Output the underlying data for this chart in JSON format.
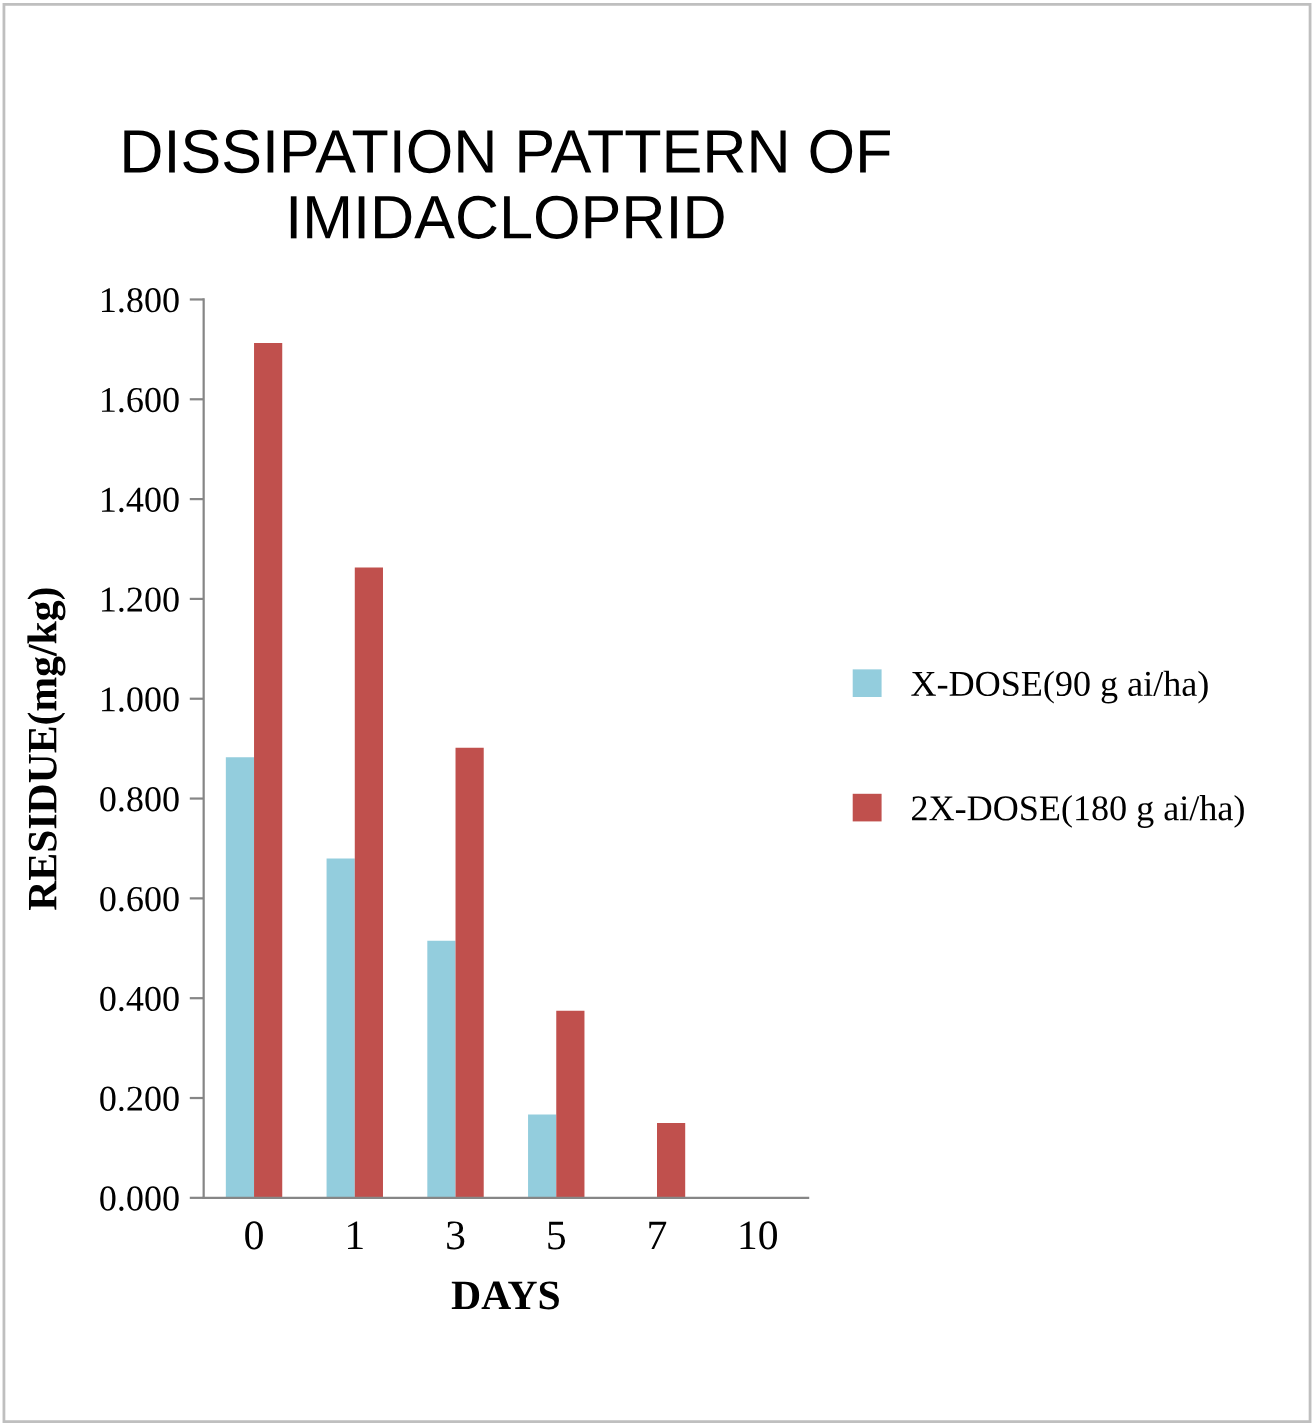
{
  "chart_data": {
    "type": "bar",
    "title": "DISSIPATION PATTERN OF\nIMIDACLOPRID",
    "xlabel": "DAYS",
    "ylabel": "RESIDUE(mg/kg)",
    "categories": [
      "0",
      "1",
      "3",
      "5",
      "7",
      "10"
    ],
    "series": [
      {
        "name": "X-DOSE(90 g ai/ha)",
        "color": "#93cddd",
        "values": [
          0.883,
          0.68,
          0.515,
          0.167,
          0,
          0
        ]
      },
      {
        "name": "2X-DOSE(180 g ai/ha)",
        "color": "#c0504d",
        "values": [
          1.713,
          1.263,
          0.902,
          0.375,
          0.15,
          0
        ]
      }
    ],
    "ylim": [
      0,
      1.8
    ],
    "yticks": [
      {
        "value": 0,
        "label": "0.000"
      },
      {
        "value": 0.2,
        "label": "0.200"
      },
      {
        "value": 0.4,
        "label": "0.400"
      },
      {
        "value": 0.6,
        "label": "0.600"
      },
      {
        "value": 0.8,
        "label": "0.800"
      },
      {
        "value": 1.0,
        "label": "1.000"
      },
      {
        "value": 1.2,
        "label": "1.200"
      },
      {
        "value": 1.4,
        "label": "1.400"
      },
      {
        "value": 1.6,
        "label": "1.600"
      },
      {
        "value": 1.8,
        "label": "1.800"
      }
    ],
    "legend": "right",
    "grid": false
  }
}
